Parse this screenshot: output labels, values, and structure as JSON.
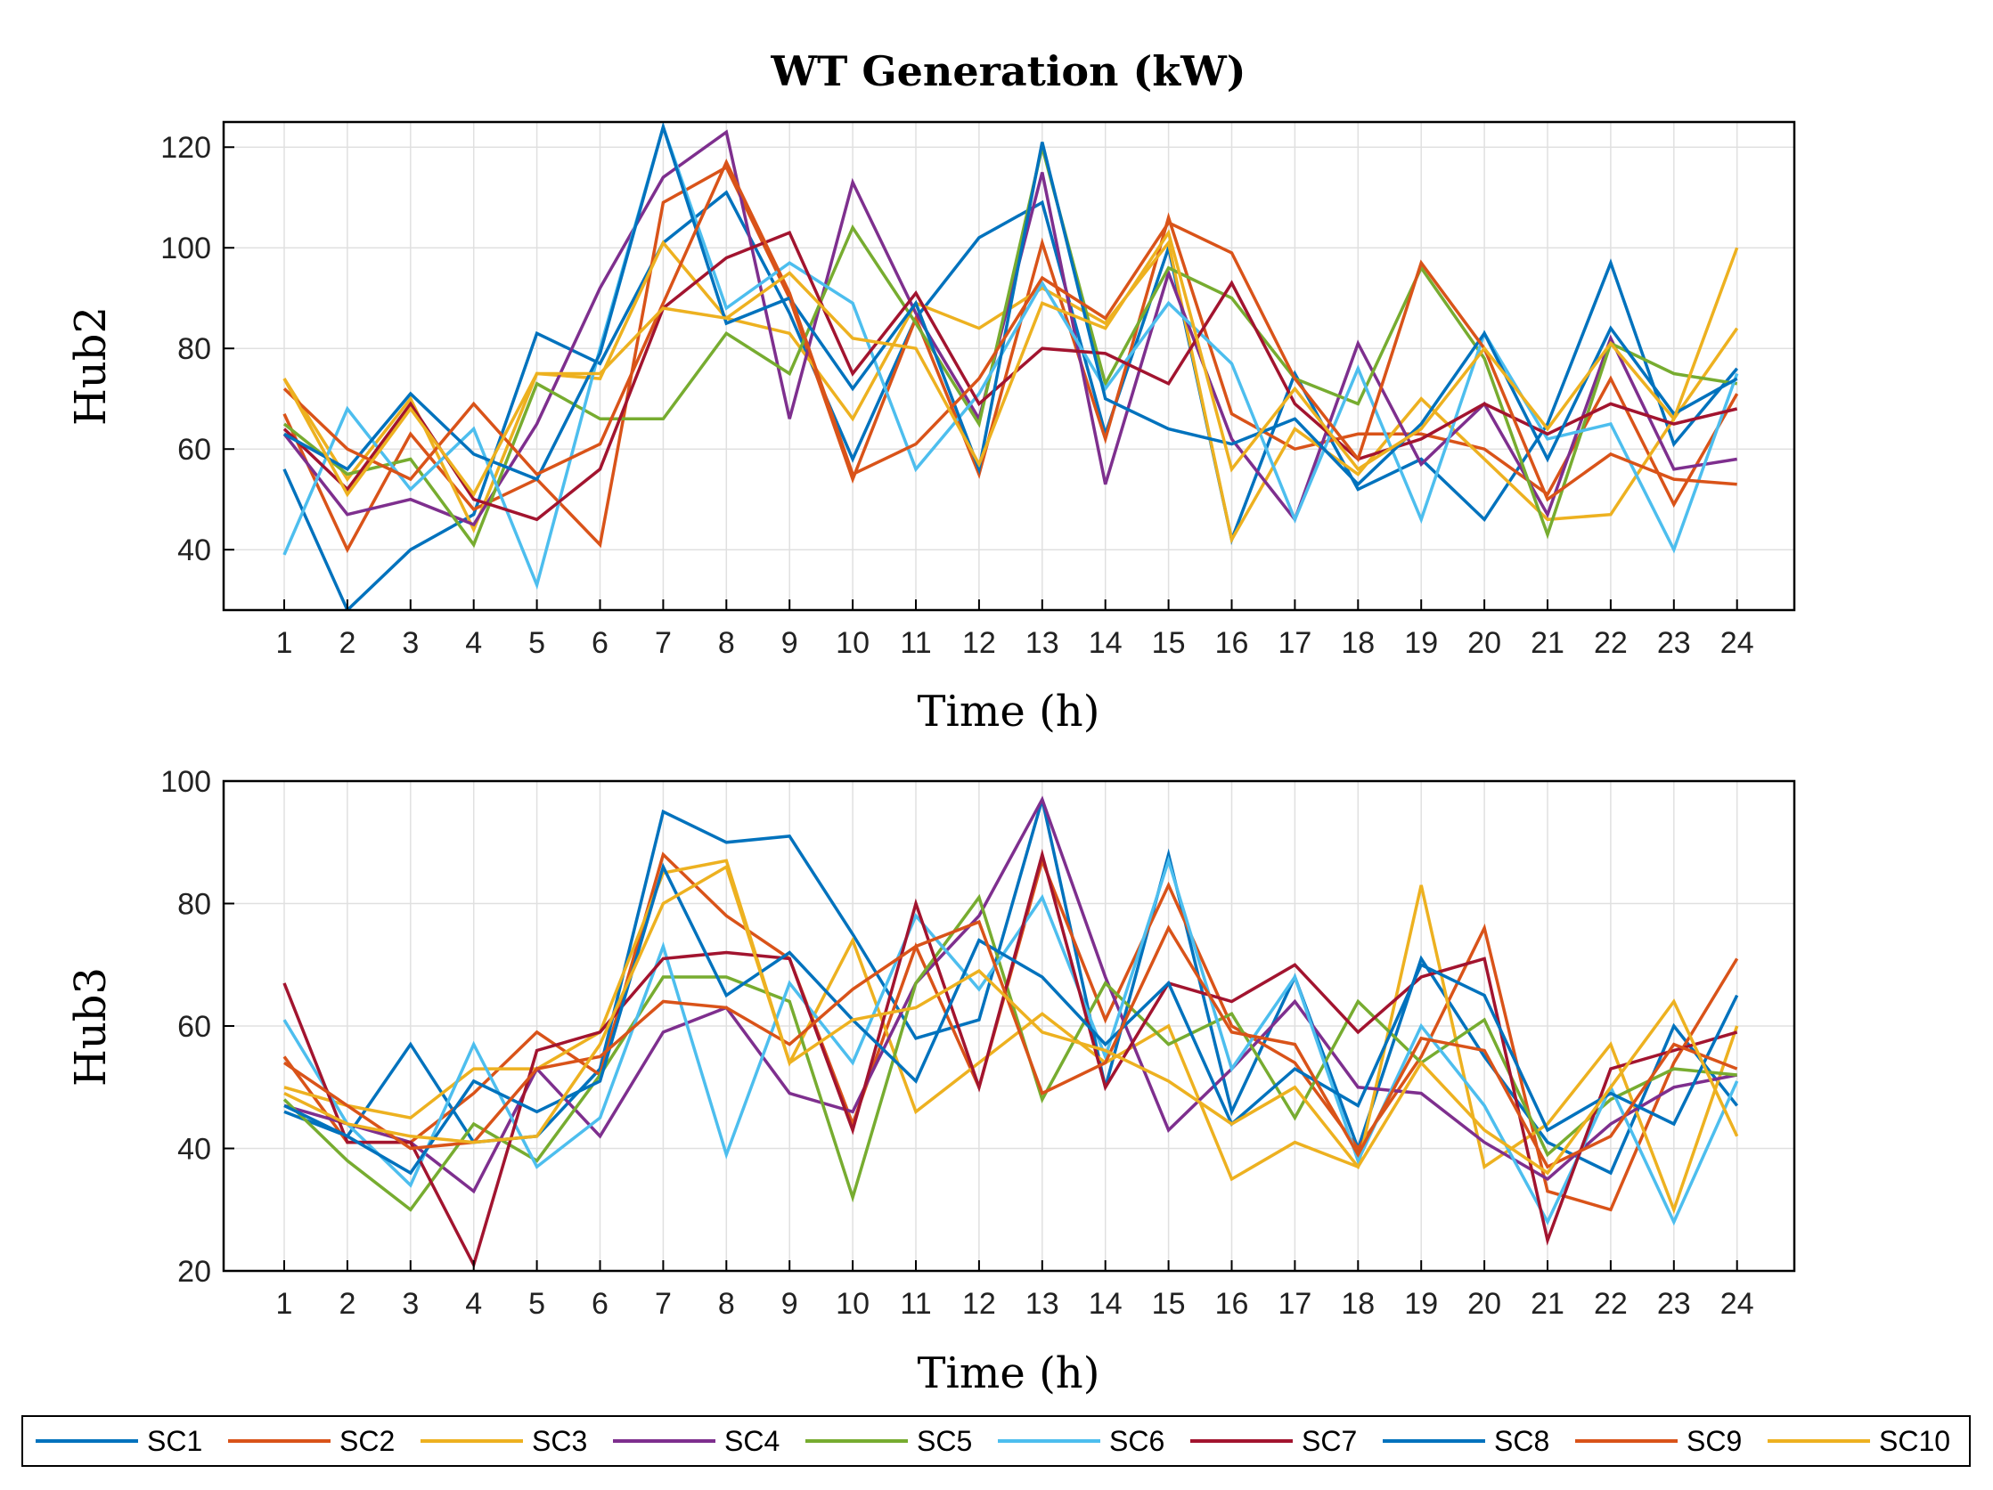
{
  "chart_data": [
    {
      "type": "line",
      "title": "WT Generation (kW)",
      "xlabel": "Time (h)",
      "ylabel": "Hub2",
      "ylim": [
        28,
        125
      ],
      "yticks": [
        40,
        60,
        80,
        100,
        120
      ],
      "grid": true,
      "x": [
        1,
        2,
        3,
        4,
        5,
        6,
        7,
        8,
        9,
        10,
        11,
        12,
        13,
        14,
        15,
        16,
        17,
        18,
        19,
        20,
        21,
        22,
        23,
        24
      ],
      "series": [
        {
          "name": "SC1",
          "values": [
            56,
            28,
            40,
            47,
            83,
            77,
            101,
            111,
            87,
            58,
            86,
            102,
            109,
            63,
            100,
            42,
            75,
            52,
            58,
            46,
            65,
            97,
            61,
            76
          ]
        },
        {
          "name": "SC2",
          "values": [
            67,
            40,
            63,
            48,
            54,
            41,
            109,
            116,
            90,
            54,
            86,
            55,
            101,
            62,
            106,
            67,
            60,
            63,
            63,
            60,
            51,
            74,
            49,
            71
          ]
        },
        {
          "name": "SC3",
          "values": [
            74,
            54,
            70,
            44,
            75,
            74,
            101,
            86,
            83,
            66,
            89,
            84,
            92,
            85,
            101,
            42,
            64,
            55,
            70,
            58,
            46,
            47,
            66,
            84
          ]
        },
        {
          "name": "SC4",
          "values": [
            63,
            47,
            50,
            45,
            65,
            92,
            114,
            123,
            66,
            113,
            87,
            66,
            115,
            53,
            95,
            62,
            46,
            81,
            57,
            69,
            47,
            82,
            56,
            58
          ]
        },
        {
          "name": "SC5",
          "values": [
            65,
            55,
            58,
            41,
            73,
            66,
            66,
            83,
            75,
            104,
            85,
            65,
            120,
            73,
            96,
            90,
            74,
            69,
            96,
            78,
            43,
            81,
            75,
            73
          ]
        },
        {
          "name": "SC6",
          "values": [
            39,
            68,
            52,
            64,
            33,
            80,
            124,
            88,
            97,
            89,
            56,
            71,
            93,
            72,
            89,
            77,
            46,
            76,
            46,
            83,
            62,
            65,
            40,
            75
          ]
        },
        {
          "name": "SC7",
          "values": [
            64,
            52,
            69,
            50,
            46,
            56,
            88,
            98,
            103,
            75,
            91,
            69,
            80,
            79,
            73,
            93,
            69,
            58,
            62,
            69,
            63,
            69,
            65,
            68
          ]
        },
        {
          "name": "SC8",
          "values": [
            63,
            56,
            71,
            59,
            54,
            79,
            124,
            85,
            90,
            72,
            89,
            56,
            121,
            70,
            64,
            61,
            66,
            53,
            65,
            83,
            58,
            84,
            67,
            74
          ]
        },
        {
          "name": "SC9",
          "values": [
            72,
            60,
            54,
            69,
            55,
            61,
            89,
            117,
            91,
            55,
            61,
            74,
            94,
            86,
            105,
            99,
            74,
            58,
            97,
            80,
            50,
            59,
            54,
            53
          ]
        },
        {
          "name": "SC10",
          "values": [
            74,
            51,
            68,
            51,
            75,
            75,
            88,
            86,
            95,
            82,
            80,
            57,
            89,
            84,
            103,
            56,
            72,
            56,
            64,
            80,
            64,
            81,
            66,
            100
          ]
        }
      ]
    },
    {
      "type": "line",
      "xlabel": "Time (h)",
      "ylabel": "Hub3",
      "ylim": [
        20,
        100
      ],
      "yticks": [
        20,
        40,
        60,
        80,
        100
      ],
      "grid": true,
      "x": [
        1,
        2,
        3,
        4,
        5,
        6,
        7,
        8,
        9,
        10,
        11,
        12,
        13,
        14,
        15,
        16,
        17,
        18,
        19,
        20,
        21,
        22,
        23,
        24
      ],
      "series": [
        {
          "name": "SC1",
          "values": [
            46,
            42,
            57,
            41,
            42,
            53,
            95,
            90,
            91,
            75,
            58,
            61,
            97,
            50,
            88,
            46,
            68,
            40,
            71,
            55,
            41,
            36,
            60,
            47
          ]
        },
        {
          "name": "SC2",
          "values": [
            55,
            41,
            41,
            49,
            59,
            52,
            88,
            78,
            71,
            44,
            73,
            50,
            87,
            61,
            83,
            60,
            54,
            40,
            55,
            76,
            33,
            30,
            54,
            71
          ]
        },
        {
          "name": "SC3",
          "values": [
            50,
            47,
            45,
            53,
            53,
            59,
            85,
            87,
            54,
            74,
            46,
            54,
            62,
            54,
            60,
            35,
            41,
            37,
            83,
            37,
            44,
            57,
            30,
            60
          ]
        },
        {
          "name": "SC4",
          "values": [
            47,
            44,
            41,
            33,
            53,
            42,
            59,
            63,
            49,
            46,
            67,
            78,
            97,
            68,
            43,
            53,
            64,
            50,
            49,
            41,
            35,
            44,
            50,
            52
          ]
        },
        {
          "name": "SC5",
          "values": [
            48,
            38,
            30,
            44,
            38,
            52,
            68,
            68,
            64,
            32,
            67,
            81,
            48,
            67,
            57,
            62,
            45,
            64,
            54,
            61,
            39,
            48,
            53,
            52
          ]
        },
        {
          "name": "SC6",
          "values": [
            61,
            44,
            34,
            57,
            37,
            45,
            73,
            39,
            67,
            54,
            78,
            66,
            81,
            55,
            87,
            53,
            68,
            38,
            60,
            47,
            28,
            50,
            28,
            51
          ]
        },
        {
          "name": "SC7",
          "values": [
            67,
            41,
            41,
            21,
            56,
            59,
            71,
            72,
            71,
            43,
            80,
            50,
            88,
            50,
            67,
            64,
            70,
            59,
            68,
            71,
            25,
            53,
            56,
            59
          ]
        },
        {
          "name": "SC8",
          "values": [
            47,
            42,
            36,
            51,
            46,
            51,
            86,
            65,
            72,
            61,
            51,
            74,
            68,
            57,
            67,
            44,
            53,
            47,
            70,
            65,
            43,
            49,
            44,
            65
          ]
        },
        {
          "name": "SC9",
          "values": [
            54,
            47,
            40,
            41,
            53,
            55,
            64,
            63,
            57,
            66,
            73,
            77,
            49,
            54,
            76,
            59,
            57,
            39,
            58,
            56,
            37,
            42,
            57,
            53
          ]
        },
        {
          "name": "SC10",
          "values": [
            49,
            44,
            42,
            41,
            42,
            57,
            80,
            86,
            54,
            61,
            63,
            69,
            59,
            56,
            51,
            44,
            50,
            37,
            54,
            43,
            36,
            50,
            64,
            42
          ]
        }
      ]
    }
  ],
  "legend": {
    "colors": [
      "#0072BD",
      "#D95319",
      "#EDB120",
      "#7E2F8E",
      "#77AC30",
      "#4DBEEE",
      "#A2142F",
      "#0072BD",
      "#D95319",
      "#EDB120"
    ]
  }
}
